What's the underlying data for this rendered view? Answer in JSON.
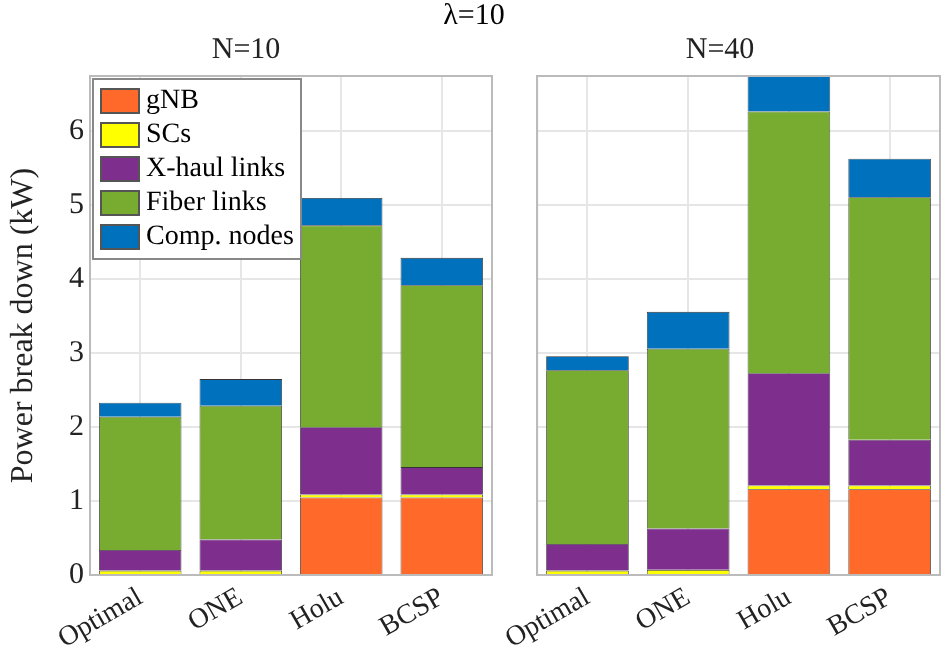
{
  "chart_data": [
    {
      "type": "bar",
      "title": "N=10",
      "annotations": [
        "λ=10"
      ],
      "ylabel": "Power break down (kW)",
      "categories": [
        "Optimal",
        "ONE",
        "Holu",
        "BCSP"
      ],
      "stacked": true,
      "ylim": [
        0,
        6.75
      ],
      "yticks": [
        0,
        1,
        2,
        3,
        4,
        5,
        6
      ],
      "grid": true,
      "legend": "top left",
      "series": [
        {
          "name": "gNB",
          "color": "#ff6a2a",
          "values": [
            null,
            null,
            1.05,
            1.05
          ]
        },
        {
          "name": "SCs",
          "color": "#ffff00",
          "values": [
            0.06,
            0.06,
            0.04,
            0.04
          ]
        },
        {
          "name": "X-haul links",
          "color": "#7e2f8e",
          "values": [
            0.28,
            0.42,
            0.91,
            0.37
          ]
        },
        {
          "name": "Fiber links",
          "color": "#77ac30",
          "values": [
            1.8,
            1.81,
            2.73,
            2.46
          ]
        },
        {
          "name": "Comp. nodes",
          "color": "#0072bd",
          "values": [
            0.19,
            0.36,
            0.37,
            0.37
          ]
        }
      ]
    },
    {
      "type": "bar",
      "title": "N=40",
      "categories": [
        "Optimal",
        "ONE",
        "Holu",
        "BCSP"
      ],
      "stacked": true,
      "ylim": [
        0,
        6.75
      ],
      "yticks": [
        0,
        1,
        2,
        3,
        4,
        5,
        6
      ],
      "grid": true,
      "tick_labels": "x",
      "series": [
        {
          "color": "#ff6a2a",
          "values": [
            null,
            null,
            1.16,
            1.16
          ]
        },
        {
          "color": "#ffff00",
          "values": [
            0.06,
            0.07,
            0.05,
            0.05
          ]
        },
        {
          "color": "#7e2f8e",
          "values": [
            0.36,
            0.56,
            1.52,
            0.62
          ]
        },
        {
          "color": "#77ac30",
          "values": [
            2.35,
            2.43,
            3.54,
            3.28
          ]
        },
        {
          "color": "#0072bd",
          "values": [
            0.19,
            0.5,
            0.48,
            0.52
          ]
        }
      ]
    }
  ]
}
